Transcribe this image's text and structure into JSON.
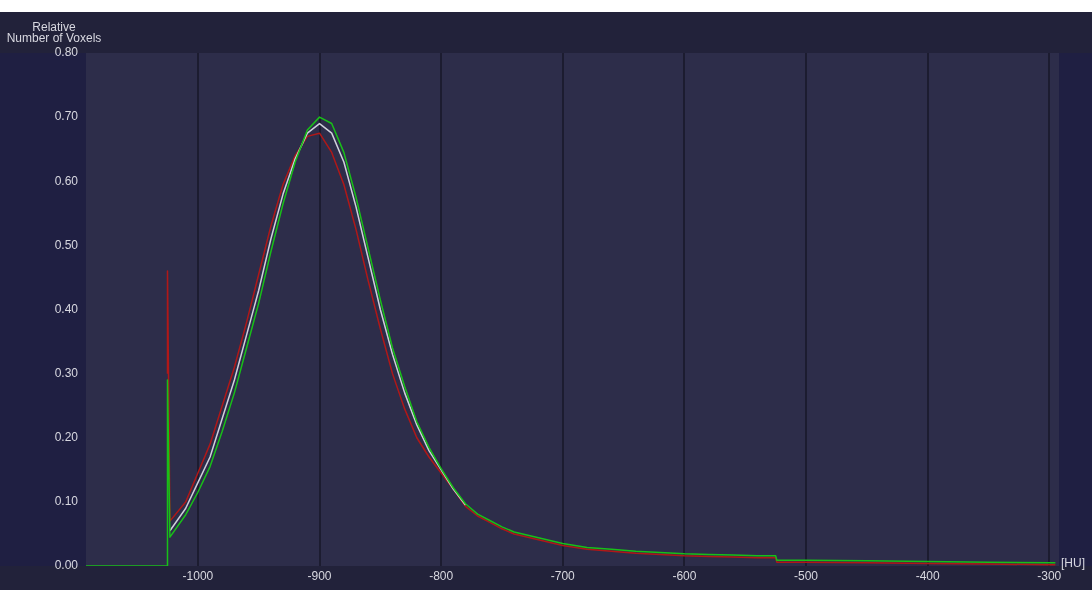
{
  "chart_data": {
    "type": "line",
    "xlabel": "[HU]",
    "ylabel": "Relative\nNumber of Voxels",
    "xlim": [
      -1092,
      -292
    ],
    "ylim": [
      0,
      0.8
    ],
    "xticks": [
      -1000,
      -900,
      -800,
      -700,
      -600,
      -500,
      -400,
      -300
    ],
    "yticks": [
      {
        "value": 0,
        "label": "0.00"
      },
      {
        "value": 0.1,
        "label": "0.10"
      },
      {
        "value": 0.2,
        "label": "0.20"
      },
      {
        "value": 0.3,
        "label": "0.30"
      },
      {
        "value": 0.4,
        "label": "0.40"
      },
      {
        "value": 0.5,
        "label": "0.50"
      },
      {
        "value": 0.6,
        "label": "0.60"
      },
      {
        "value": 0.7,
        "label": "0.70"
      },
      {
        "value": 0.8,
        "label": "0.80"
      }
    ],
    "grid": "x",
    "series": [
      {
        "color": "#b01818",
        "x": [
          -1025,
          -1025,
          -1023,
          -1010,
          -1000,
          -990,
          -980,
          -970,
          -960,
          -950,
          -940,
          -930,
          -920,
          -910,
          -900,
          -890,
          -880,
          -870,
          -860,
          -850,
          -840,
          -830,
          -820,
          -810,
          -800,
          -790,
          -780,
          -770,
          -760,
          -750,
          -740,
          -720,
          -700,
          -680,
          -660,
          -640,
          -620,
          -600,
          -580,
          -560,
          -540,
          -525,
          -524,
          -500,
          -450,
          -400,
          -350,
          -300,
          -295
        ],
        "values": [
          0.3,
          0.46,
          0.07,
          0.1,
          0.145,
          0.19,
          0.25,
          0.31,
          0.38,
          0.455,
          0.53,
          0.595,
          0.64,
          0.67,
          0.675,
          0.645,
          0.595,
          0.525,
          0.445,
          0.37,
          0.3,
          0.245,
          0.2,
          0.17,
          0.145,
          0.12,
          0.093,
          0.078,
          0.068,
          0.058,
          0.05,
          0.041,
          0.032,
          0.026,
          0.023,
          0.02,
          0.018,
          0.016,
          0.015,
          0.014,
          0.013,
          0.013,
          0.006,
          0.006,
          0.005,
          0.004,
          0.003,
          0.002,
          0.002
        ]
      },
      {
        "color": "#d0d0dc",
        "x": [
          -1023,
          -1010,
          -1000,
          -990,
          -980,
          -970,
          -960,
          -950,
          -940,
          -930,
          -920,
          -910,
          -900,
          -890,
          -880,
          -870,
          -860,
          -850,
          -840,
          -830,
          -820,
          -810,
          -800,
          -790,
          -780
        ],
        "values": [
          0.055,
          0.09,
          0.13,
          0.17,
          0.23,
          0.29,
          0.36,
          0.43,
          0.51,
          0.58,
          0.635,
          0.675,
          0.69,
          0.675,
          0.63,
          0.56,
          0.48,
          0.4,
          0.33,
          0.27,
          0.22,
          0.18,
          0.15,
          0.12,
          0.095
        ]
      },
      {
        "color": "#18c018",
        "x": [
          -1092,
          -1025,
          -1025,
          -1023,
          -1010,
          -1000,
          -990,
          -980,
          -970,
          -960,
          -950,
          -940,
          -930,
          -920,
          -910,
          -900,
          -890,
          -880,
          -870,
          -860,
          -850,
          -840,
          -830,
          -820,
          -810,
          -800,
          -790,
          -780,
          -770,
          -760,
          -750,
          -740,
          -720,
          -700,
          -680,
          -660,
          -640,
          -620,
          -600,
          -580,
          -560,
          -540,
          -525,
          -524,
          -500,
          -450,
          -400,
          -350,
          -300,
          -295
        ],
        "values": [
          0,
          0,
          0.29,
          0.045,
          0.08,
          0.115,
          0.155,
          0.21,
          0.27,
          0.34,
          0.41,
          0.49,
          0.565,
          0.63,
          0.68,
          0.7,
          0.69,
          0.645,
          0.575,
          0.495,
          0.415,
          0.34,
          0.28,
          0.225,
          0.185,
          0.152,
          0.122,
          0.097,
          0.081,
          0.071,
          0.061,
          0.053,
          0.044,
          0.035,
          0.029,
          0.026,
          0.023,
          0.021,
          0.019,
          0.018,
          0.017,
          0.016,
          0.016,
          0.009,
          0.009,
          0.008,
          0.007,
          0.006,
          0.005,
          0.005
        ]
      }
    ]
  }
}
